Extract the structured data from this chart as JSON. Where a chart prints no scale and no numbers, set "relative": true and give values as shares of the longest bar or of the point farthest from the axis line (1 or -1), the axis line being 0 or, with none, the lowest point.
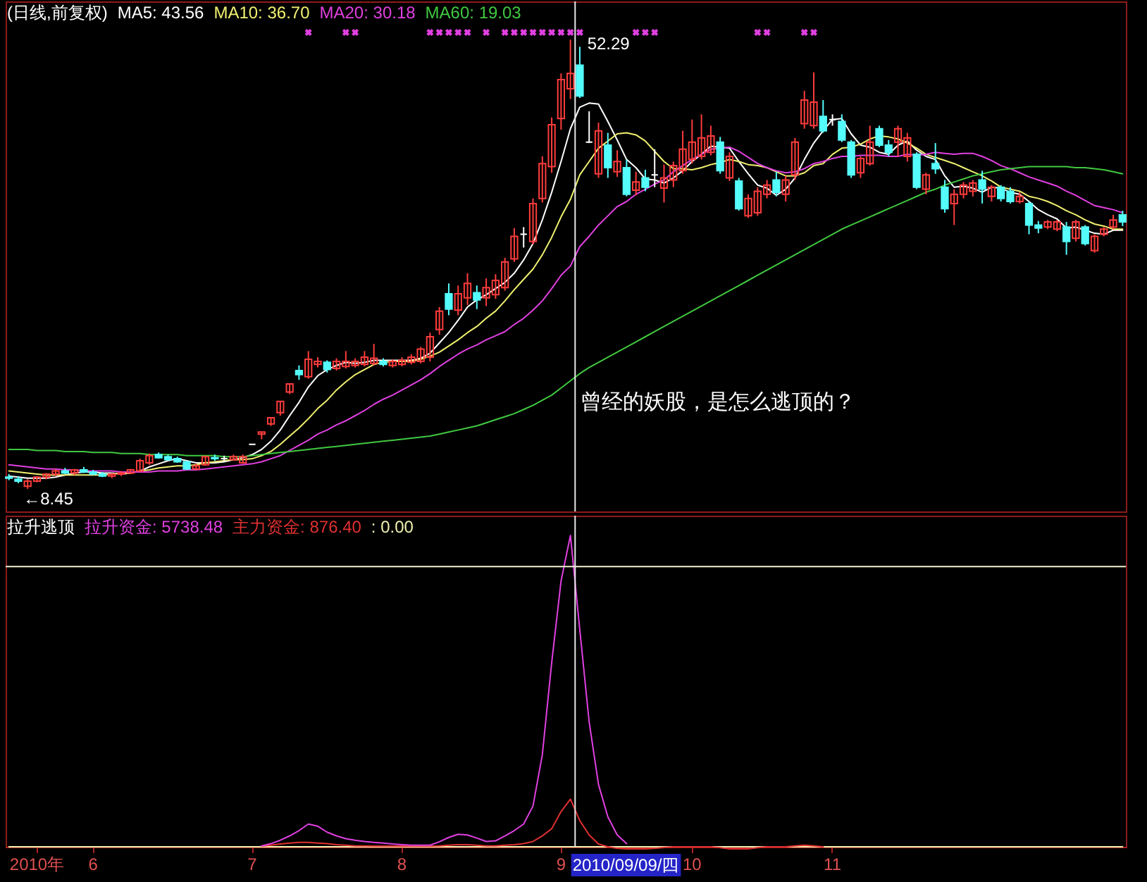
{
  "chart_data": [
    {
      "type": "candlestick",
      "title": "(日线,前复权)",
      "legend": "top left",
      "tick_labels": false,
      "categories": [
        null,
        null,
        null,
        null,
        null,
        null,
        null,
        null,
        null,
        null,
        null,
        null,
        null,
        null,
        null,
        null,
        null,
        null,
        null,
        null,
        null,
        null,
        null,
        null,
        null,
        null,
        null,
        null,
        null,
        null,
        null,
        null,
        null,
        null,
        null,
        null,
        null,
        null,
        null,
        null,
        null,
        null,
        null,
        null,
        null,
        null,
        null,
        null,
        null,
        null,
        null,
        null,
        null,
        null,
        null,
        null,
        null,
        null,
        null,
        null,
        null,
        null,
        null,
        null,
        null,
        null,
        null,
        null,
        null,
        null,
        null,
        null,
        null,
        null,
        null,
        null,
        null,
        null,
        null,
        null,
        null,
        null,
        null,
        null,
        null,
        null,
        null,
        null,
        null,
        null,
        null,
        null,
        null,
        null,
        null,
        null,
        null,
        null,
        null,
        null,
        null,
        null,
        null,
        null,
        null,
        null,
        null,
        null,
        null,
        null,
        null,
        null,
        null,
        null,
        null,
        null,
        null,
        null,
        null,
        null
      ],
      "ohlc": [
        [
          9.6,
          9.9,
          9.3,
          9.5
        ],
        [
          9.4,
          9.7,
          9.0,
          9.2
        ],
        [
          8.7,
          9.4,
          8.45,
          9.2
        ],
        [
          9.2,
          9.7,
          9.1,
          9.6
        ],
        [
          9.6,
          10.0,
          9.4,
          9.9
        ],
        [
          9.9,
          10.4,
          9.7,
          10.2
        ],
        [
          10.2,
          10.5,
          9.9,
          10.0
        ],
        [
          10.0,
          10.4,
          9.8,
          10.3
        ],
        [
          10.3,
          10.6,
          10.0,
          10.1
        ],
        [
          10.1,
          10.3,
          9.8,
          9.9
        ],
        [
          9.9,
          10.1,
          9.6,
          9.7
        ],
        [
          9.7,
          10.0,
          9.5,
          9.9
        ],
        [
          9.9,
          10.2,
          9.7,
          10.0
        ],
        [
          10.0,
          10.4,
          9.9,
          10.3
        ],
        [
          10.2,
          11.4,
          10.1,
          11.2
        ],
        [
          11.0,
          11.9,
          10.8,
          11.7
        ],
        [
          11.8,
          12.0,
          11.4,
          11.5
        ],
        [
          11.6,
          11.8,
          11.2,
          11.3
        ],
        [
          11.4,
          11.6,
          11.0,
          11.1
        ],
        [
          11.1,
          11.2,
          10.3,
          10.4
        ],
        [
          10.4,
          10.9,
          10.3,
          10.7
        ],
        [
          10.8,
          11.7,
          10.7,
          11.6
        ],
        [
          11.5,
          11.8,
          11.2,
          11.4
        ],
        [
          11.4,
          11.7,
          11.1,
          11.4
        ],
        [
          11.3,
          11.8,
          11.2,
          11.6
        ],
        [
          11.0,
          11.8,
          10.9,
          11.6
        ],
        [
          12.8,
          12.8,
          12.8,
          12.8
        ],
        [
          13.8,
          14.0,
          13.3,
          14.0
        ],
        [
          14.8,
          15.4,
          14.6,
          15.4
        ],
        [
          15.9,
          17.0,
          15.6,
          17.0
        ],
        [
          17.9,
          18.7,
          17.7,
          18.7
        ],
        [
          20.0,
          20.5,
          19.1,
          19.6
        ],
        [
          19.4,
          21.9,
          19.2,
          21.1
        ],
        [
          20.6,
          21.3,
          20.3,
          20.9
        ],
        [
          20.8,
          21.0,
          19.8,
          20.1
        ],
        [
          20.2,
          21.2,
          20.0,
          20.9
        ],
        [
          20.4,
          21.9,
          20.2,
          20.9
        ],
        [
          20.5,
          21.2,
          20.3,
          20.9
        ],
        [
          20.6,
          21.9,
          20.4,
          21.3
        ],
        [
          20.7,
          22.6,
          20.5,
          21.2
        ],
        [
          20.9,
          21.2,
          20.4,
          20.6
        ],
        [
          20.5,
          21.1,
          20.3,
          20.9
        ],
        [
          20.6,
          21.3,
          20.4,
          21.0
        ],
        [
          20.8,
          21.6,
          20.6,
          21.3
        ],
        [
          20.9,
          22.3,
          20.7,
          22.1
        ],
        [
          21.3,
          23.7,
          20.9,
          23.3
        ],
        [
          24.0,
          26.2,
          23.5,
          25.8
        ],
        [
          27.5,
          28.5,
          25.4,
          26.0
        ],
        [
          25.9,
          28.3,
          25.4,
          27.5
        ],
        [
          27.1,
          29.5,
          26.4,
          28.5
        ],
        [
          27.6,
          28.3,
          26.0,
          26.9
        ],
        [
          27.1,
          29.0,
          26.3,
          28.1
        ],
        [
          27.4,
          29.4,
          27.0,
          28.8
        ],
        [
          28.1,
          31.0,
          27.8,
          30.6
        ],
        [
          30.9,
          33.9,
          30.6,
          33.1
        ],
        [
          33.3,
          34.0,
          32.0,
          33.3
        ],
        [
          32.6,
          36.8,
          32.3,
          36.3
        ],
        [
          36.8,
          40.9,
          36.4,
          40.2
        ],
        [
          39.9,
          44.7,
          39.3,
          44.0
        ],
        [
          44.6,
          49.0,
          43.5,
          48.4
        ],
        [
          47.5,
          52.29,
          46.5,
          49.0
        ],
        [
          49.8,
          51.6,
          46.6,
          46.8
        ],
        [
          42.3,
          45.3,
          42.2,
          42.3
        ],
        [
          39.2,
          44.2,
          38.8,
          43.4
        ],
        [
          42.0,
          43.2,
          38.8,
          39.8
        ],
        [
          39.4,
          41.5,
          38.9,
          40.4
        ],
        [
          39.8,
          40.6,
          37.0,
          37.2
        ],
        [
          37.6,
          39.4,
          37.1,
          38.4
        ],
        [
          38.8,
          39.6,
          37.5,
          37.9
        ],
        [
          39.1,
          41.6,
          37.9,
          39.1
        ],
        [
          37.8,
          40.1,
          36.4,
          38.8
        ],
        [
          38.6,
          40.4,
          37.9,
          40.0
        ],
        [
          39.5,
          43.4,
          39.2,
          41.6
        ],
        [
          40.6,
          44.5,
          40.2,
          42.3
        ],
        [
          40.9,
          45.0,
          40.6,
          42.7
        ],
        [
          41.3,
          43.9,
          41.0,
          42.9
        ],
        [
          42.3,
          42.8,
          39.2,
          39.5
        ],
        [
          38.8,
          41.3,
          38.5,
          40.9
        ],
        [
          38.5,
          38.8,
          35.6,
          35.8
        ],
        [
          35.1,
          37.2,
          34.9,
          36.8
        ],
        [
          35.4,
          37.9,
          35.1,
          37.5
        ],
        [
          37.2,
          38.6,
          36.8,
          38.1
        ],
        [
          38.6,
          39.4,
          37.0,
          37.4
        ],
        [
          37.2,
          39.0,
          36.5,
          38.6
        ],
        [
          39.1,
          42.7,
          38.6,
          42.3
        ],
        [
          44.1,
          47.3,
          43.6,
          46.4
        ],
        [
          43.9,
          49.1,
          43.6,
          46.2
        ],
        [
          44.8,
          46.4,
          43.2,
          43.4
        ],
        [
          44.5,
          45.0,
          43.9,
          44.5
        ],
        [
          44.3,
          45.0,
          42.3,
          42.5
        ],
        [
          42.3,
          42.5,
          38.8,
          39.1
        ],
        [
          39.3,
          40.9,
          38.8,
          40.7
        ],
        [
          40.2,
          43.9,
          40.0,
          42.3
        ],
        [
          43.6,
          43.9,
          41.8,
          42.0
        ],
        [
          42.0,
          42.5,
          40.9,
          41.3
        ],
        [
          42.3,
          43.9,
          40.9,
          43.6
        ],
        [
          40.9,
          43.2,
          40.4,
          42.7
        ],
        [
          41.1,
          41.3,
          37.7,
          37.9
        ],
        [
          37.7,
          39.3,
          37.2,
          39.1
        ],
        [
          40.2,
          42.2,
          39.2,
          39.7
        ],
        [
          37.9,
          38.6,
          35.4,
          35.8
        ],
        [
          36.3,
          37.7,
          34.2,
          37.2
        ],
        [
          37.2,
          38.4,
          36.8,
          38.1
        ],
        [
          37.5,
          38.6,
          37.0,
          38.3
        ],
        [
          38.6,
          39.5,
          36.3,
          37.7
        ],
        [
          37.0,
          38.1,
          36.5,
          37.9
        ],
        [
          37.9,
          38.1,
          36.5,
          36.8
        ],
        [
          37.5,
          37.9,
          36.3,
          36.5
        ],
        [
          36.5,
          37.4,
          36.3,
          37.0
        ],
        [
          36.3,
          36.5,
          33.3,
          34.2
        ],
        [
          34.2,
          34.6,
          33.4,
          33.9
        ],
        [
          34.0,
          34.7,
          33.8,
          34.5
        ],
        [
          33.8,
          34.7,
          33.6,
          34.5
        ],
        [
          34.0,
          34.5,
          31.3,
          32.6
        ],
        [
          32.9,
          34.7,
          32.6,
          34.5
        ],
        [
          34.0,
          34.2,
          32.2,
          32.4
        ],
        [
          31.7,
          33.3,
          31.5,
          33.1
        ],
        [
          33.3,
          34.0,
          33.1,
          33.8
        ],
        [
          34.0,
          35.2,
          33.8,
          34.7
        ],
        [
          35.2,
          35.6,
          34.1,
          34.5
        ]
      ],
      "colors": [
        "#54fcfc",
        "#54fcfc",
        "#ff3c3c",
        "#ff3c3c",
        "#ff3c3c",
        "#ff3c3c",
        "#54fcfc",
        "#ff3c3c",
        "#54fcfc",
        "#54fcfc",
        "#54fcfc",
        "#ff3c3c",
        "#ff3c3c",
        "#ff3c3c",
        "#ff3c3c",
        "#ff3c3c",
        "#54fcfc",
        "#54fcfc",
        "#54fcfc",
        "#54fcfc",
        "#ff3c3c",
        "#ff3c3c",
        "#54fcfc",
        "#ffffff",
        "#ff3c3c",
        "#ff3c3c",
        "#ffffff",
        "#ff3c3c",
        "#ff3c3c",
        "#ff3c3c",
        "#ff3c3c",
        "#54fcfc",
        "#ff3c3c",
        "#ff3c3c",
        "#54fcfc",
        "#ff3c3c",
        "#ff3c3c",
        "#ff3c3c",
        "#ff3c3c",
        "#ff3c3c",
        "#54fcfc",
        "#ff3c3c",
        "#ff3c3c",
        "#ff3c3c",
        "#ff3c3c",
        "#ff3c3c",
        "#ff3c3c",
        "#54fcfc",
        "#ff3c3c",
        "#ff3c3c",
        "#54fcfc",
        "#ff3c3c",
        "#ff3c3c",
        "#ff3c3c",
        "#ff3c3c",
        "#ffffff",
        "#ff3c3c",
        "#ff3c3c",
        "#ff3c3c",
        "#ff3c3c",
        "#ff3c3c",
        "#54fcfc",
        "#ffffff",
        "#ff3c3c",
        "#54fcfc",
        "#ff3c3c",
        "#54fcfc",
        "#ff3c3c",
        "#54fcfc",
        "#ffffff",
        "#ff3c3c",
        "#ff3c3c",
        "#ff3c3c",
        "#ff3c3c",
        "#ff3c3c",
        "#ff3c3c",
        "#54fcfc",
        "#ff3c3c",
        "#54fcfc",
        "#ff3c3c",
        "#ff3c3c",
        "#ff3c3c",
        "#54fcfc",
        "#ff3c3c",
        "#ff3c3c",
        "#ff3c3c",
        "#ff3c3c",
        "#54fcfc",
        "#ffffff",
        "#54fcfc",
        "#54fcfc",
        "#ff3c3c",
        "#ff3c3c",
        "#54fcfc",
        "#54fcfc",
        "#ff3c3c",
        "#ff3c3c",
        "#54fcfc",
        "#ff3c3c",
        "#54fcfc",
        "#54fcfc",
        "#ff3c3c",
        "#ff3c3c",
        "#ff3c3c",
        "#54fcfc",
        "#ff3c3c",
        "#54fcfc",
        "#54fcfc",
        "#ff3c3c",
        "#54fcfc",
        "#54fcfc",
        "#ff3c3c",
        "#ff3c3c",
        "#54fcfc",
        "#ff3c3c",
        "#54fcfc",
        "#ff3c3c",
        "#ff3c3c",
        "#ff3c3c",
        "#54fcfc"
      ],
      "series": [
        {
          "name": "MA5: 43.56",
          "type": "line",
          "color": "#ffffff",
          "values": [
            9.7,
            9.6,
            9.5,
            9.5,
            9.5,
            9.6,
            9.8,
            10.0,
            10.1,
            10.1,
            10.0,
            10.0,
            9.9,
            10.0,
            10.2,
            10.6,
            10.9,
            11.2,
            11.4,
            11.2,
            11.0,
            11.0,
            11.0,
            11.1,
            11.3,
            11.5,
            11.8,
            12.3,
            13.1,
            14.2,
            15.6,
            16.9,
            18.4,
            19.5,
            20.1,
            20.5,
            20.8,
            20.7,
            20.8,
            21.0,
            21.0,
            21.0,
            21.0,
            21.0,
            21.2,
            21.7,
            22.7,
            23.7,
            24.9,
            26.2,
            26.9,
            27.4,
            28.0,
            28.6,
            29.5,
            30.8,
            32.4,
            34.7,
            37.4,
            40.4,
            43.6,
            45.7,
            46.1,
            46.0,
            44.3,
            42.5,
            40.6,
            39.8,
            38.7,
            38.6,
            38.3,
            38.8,
            39.5,
            40.4,
            41.1,
            41.9,
            41.8,
            41.7,
            40.4,
            39.2,
            38.1,
            37.8,
            37.1,
            37.7,
            38.8,
            40.6,
            42.2,
            43.4,
            44.5,
            44.6,
            43.1,
            42.0,
            41.8,
            41.3,
            41.1,
            42.0,
            42.4,
            41.5,
            40.9,
            40.6,
            39.0,
            37.9,
            38.0,
            37.8,
            37.4,
            37.9,
            37.8,
            37.4,
            37.2,
            36.5,
            35.7,
            35.2,
            34.8,
            33.9,
            34.0,
            33.7,
            33.4,
            33.3,
            33.7,
            33.7
          ]
        },
        {
          "name": "MA10: 36.70",
          "type": "line",
          "color": "#f0f070",
          "values": [
            10.2,
            10.1,
            10.0,
            9.9,
            9.8,
            9.8,
            9.8,
            9.8,
            9.8,
            9.8,
            9.8,
            9.9,
            10.0,
            10.0,
            10.2,
            10.3,
            10.5,
            10.6,
            10.7,
            10.7,
            10.8,
            11.0,
            11.1,
            11.2,
            11.3,
            11.3,
            11.4,
            11.7,
            12.1,
            12.8,
            13.6,
            14.4,
            15.3,
            16.3,
            17.1,
            18.1,
            18.9,
            19.6,
            20.1,
            20.6,
            20.8,
            20.9,
            20.9,
            20.9,
            21.1,
            21.4,
            21.8,
            22.4,
            23.0,
            23.7,
            24.3,
            25.1,
            25.8,
            26.8,
            27.9,
            28.9,
            29.9,
            31.3,
            33.0,
            35.0,
            36.7,
            39.1,
            40.4,
            41.7,
            42.4,
            43.1,
            43.2,
            43.0,
            42.4,
            41.4,
            40.4,
            39.7,
            39.7,
            39.6,
            39.8,
            40.1,
            40.3,
            40.6,
            40.4,
            40.1,
            40.0,
            39.8,
            39.4,
            39.0,
            39.0,
            39.3,
            40.0,
            40.2,
            41.1,
            41.7,
            41.8,
            42.1,
            42.6,
            42.9,
            42.8,
            42.6,
            42.2,
            41.7,
            41.1,
            40.8,
            40.5,
            40.2,
            39.8,
            39.4,
            39.0,
            38.5,
            37.9,
            37.7,
            37.5,
            37.0,
            36.8,
            36.5,
            36.1,
            35.6,
            35.2,
            34.7,
            34.3,
            34.1,
            33.8,
            33.8
          ]
        },
        {
          "name": "MA20: 30.18",
          "type": "line",
          "color": "#e040e0",
          "values": [
            10.8,
            10.7,
            10.6,
            10.5,
            10.4,
            10.4,
            10.3,
            10.3,
            10.2,
            10.2,
            10.2,
            10.2,
            10.1,
            10.1,
            10.1,
            10.1,
            10.2,
            10.2,
            10.2,
            10.3,
            10.3,
            10.4,
            10.5,
            10.6,
            10.7,
            10.8,
            10.9,
            11.1,
            11.4,
            11.7,
            12.2,
            12.7,
            13.2,
            13.8,
            14.2,
            14.7,
            15.1,
            15.6,
            16.1,
            16.7,
            17.2,
            17.6,
            18.1,
            18.6,
            19.1,
            19.7,
            20.4,
            21.0,
            21.6,
            22.1,
            22.5,
            23.0,
            23.4,
            23.8,
            24.5,
            25.1,
            25.9,
            26.8,
            28.0,
            29.3,
            30.2,
            32.1,
            33.1,
            34.2,
            35.1,
            36.0,
            36.5,
            37.2,
            37.7,
            38.2,
            38.6,
            39.4,
            40.0,
            40.6,
            41.1,
            41.6,
            41.7,
            41.8,
            41.4,
            40.8,
            40.2,
            39.8,
            39.5,
            39.3,
            39.4,
            39.7,
            40.2,
            40.4,
            40.7,
            40.9,
            40.9,
            41.0,
            41.0,
            41.0,
            40.9,
            40.9,
            41.1,
            41.0,
            41.1,
            41.3,
            41.2,
            41.1,
            41.2,
            41.2,
            40.9,
            40.5,
            40.0,
            39.7,
            39.3,
            38.9,
            38.6,
            38.3,
            38.0,
            37.5,
            37.1,
            36.6,
            36.1,
            35.9,
            35.7,
            35.4
          ]
        },
        {
          "name": "MA60: 19.03",
          "type": "line",
          "color": "#40c840",
          "values": [
            12.3,
            12.3,
            12.3,
            12.2,
            12.2,
            12.2,
            12.1,
            12.1,
            12.1,
            12.0,
            12.0,
            12.0,
            11.9,
            11.9,
            11.9,
            11.8,
            11.8,
            11.8,
            11.8,
            11.7,
            11.7,
            11.7,
            11.7,
            11.6,
            11.6,
            11.6,
            11.7,
            11.8,
            11.9,
            12.0,
            12.1,
            12.2,
            12.3,
            12.4,
            12.5,
            12.6,
            12.7,
            12.8,
            12.9,
            13.0,
            13.1,
            13.2,
            13.3,
            13.4,
            13.5,
            13.6,
            13.8,
            14.0,
            14.2,
            14.4,
            14.6,
            14.9,
            15.2,
            15.5,
            15.8,
            16.2,
            16.6,
            17.1,
            17.6,
            18.3,
            19.0,
            19.7,
            20.3,
            20.8,
            21.3,
            21.8,
            22.3,
            22.8,
            23.3,
            23.8,
            24.3,
            24.8,
            25.3,
            25.8,
            26.3,
            26.8,
            27.3,
            27.8,
            28.3,
            28.8,
            29.3,
            29.8,
            30.3,
            30.8,
            31.3,
            31.8,
            32.3,
            32.8,
            33.3,
            33.8,
            34.2,
            34.6,
            35.0,
            35.4,
            35.8,
            36.2,
            36.6,
            37.0,
            37.4,
            37.7,
            38.1,
            38.4,
            38.7,
            39.0,
            39.2,
            39.4,
            39.6,
            39.7,
            39.8,
            39.9,
            39.9,
            39.9,
            39.9,
            39.9,
            39.8,
            39.8,
            39.7,
            39.6,
            39.4,
            39.2
          ]
        },
        {
          "type": "scatter",
          "marker": "cross",
          "color": "#e040e0",
          "values": [
            null,
            null,
            null,
            null,
            null,
            null,
            null,
            null,
            null,
            null,
            null,
            null,
            null,
            null,
            null,
            null,
            null,
            null,
            null,
            null,
            null,
            null,
            null,
            null,
            null,
            null,
            null,
            null,
            null,
            null,
            null,
            null,
            53,
            null,
            null,
            null,
            53,
            53,
            null,
            null,
            null,
            null,
            null,
            null,
            null,
            53,
            53,
            53,
            53,
            53,
            null,
            53,
            null,
            53,
            53,
            53,
            53,
            53,
            53,
            53,
            53,
            53,
            null,
            null,
            null,
            null,
            null,
            53,
            53,
            53,
            null,
            null,
            null,
            null,
            null,
            null,
            null,
            null,
            null,
            null,
            53,
            53,
            null,
            null,
            null,
            53,
            53,
            null,
            null,
            null,
            null,
            null,
            null,
            null,
            null,
            null,
            null,
            null,
            null,
            null,
            null,
            null,
            null,
            null,
            null,
            null,
            null,
            null,
            null,
            null,
            null,
            null,
            null,
            null,
            null,
            null,
            null,
            null,
            null,
            null
          ]
        }
      ],
      "annotations": [
        "52.29",
        "←8.45",
        "曾经的妖股，是怎么逃顶的？"
      ]
    },
    {
      "type": "line",
      "title": "拉升逃顶",
      "legend": "top left",
      "tick_labels": "x",
      "relative": true,
      "categories": [
        null,
        null,
        null,
        "2010年",
        null,
        null,
        null,
        null,
        null,
        "6",
        null,
        null,
        null,
        null,
        null,
        null,
        null,
        null,
        null,
        null,
        null,
        null,
        null,
        null,
        null,
        null,
        "7",
        null,
        null,
        null,
        null,
        null,
        null,
        null,
        null,
        null,
        null,
        null,
        null,
        null,
        null,
        null,
        "8",
        null,
        null,
        null,
        null,
        null,
        null,
        null,
        null,
        null,
        null,
        null,
        null,
        null,
        null,
        null,
        null,
        "9",
        null,
        null,
        null,
        null,
        null,
        null,
        null,
        null,
        null,
        null,
        null,
        null,
        null,
        "10",
        null,
        null,
        null,
        null,
        null,
        null,
        null,
        null,
        null,
        null,
        null,
        null,
        null,
        null,
        "11",
        null,
        null,
        null,
        null,
        null,
        null,
        null,
        null,
        null,
        null,
        null,
        null,
        null,
        null,
        null,
        null,
        null,
        null,
        null,
        null,
        null,
        null,
        null,
        null,
        null,
        null,
        null,
        null,
        null,
        null,
        null
      ],
      "series": [
        {
          "name": "拉升资金: 5738.48",
          "color": "#e040e0",
          "values": [
            null,
            null,
            null,
            null,
            null,
            null,
            null,
            null,
            null,
            null,
            null,
            null,
            null,
            null,
            null,
            null,
            null,
            null,
            null,
            null,
            null,
            null,
            null,
            null,
            null,
            null,
            null,
            0.003,
            0.01,
            0.021,
            0.035,
            0.052,
            0.073,
            0.066,
            0.047,
            0.035,
            0.026,
            0.021,
            0.017,
            0.014,
            0.012,
            0.009,
            0.007,
            0.005,
            0.005,
            0.005,
            0.016,
            0.03,
            0.04,
            0.038,
            0.028,
            0.017,
            0.019,
            0.035,
            0.052,
            0.073,
            0.131,
            0.296,
            0.592,
            0.854,
            1,
            0.697,
            0.401,
            0.2,
            0.096,
            0.038,
            0.01,
            null,
            null,
            null,
            null,
            null,
            null,
            null,
            null,
            null,
            null,
            null,
            null,
            null,
            null,
            null,
            null,
            null,
            null,
            null,
            null,
            null,
            null,
            null,
            null,
            null,
            null,
            null,
            null,
            null,
            null,
            null,
            null,
            null,
            null,
            null,
            null,
            null,
            null,
            null,
            null,
            null,
            null,
            null,
            null,
            null,
            null,
            null,
            null,
            null,
            null,
            null,
            null,
            null
          ]
        },
        {
          "name": "主力资金: 876.40",
          "color": "#e03030",
          "values": [
            null,
            null,
            null,
            null,
            null,
            null,
            null,
            null,
            null,
            null,
            null,
            null,
            null,
            null,
            null,
            null,
            null,
            null,
            null,
            null,
            null,
            null,
            null,
            null,
            null,
            null,
            null,
            0.002,
            0.005,
            0.009,
            0.012,
            0.014,
            0.014,
            0.012,
            0.01,
            0.007,
            0.005,
            0.003,
            0.003,
            0.002,
            0.002,
            0.002,
            0.002,
            0.002,
            0.002,
            0.002,
            0.003,
            0.005,
            0.007,
            0.007,
            0.005,
            0.003,
            0.003,
            0.005,
            0.007,
            0.01,
            0.017,
            0.035,
            0.058,
            0.113,
            0.153,
            0.084,
            0.038,
            0.009,
            0,
            -0.005,
            -0.007,
            -0.007,
            -0.007,
            -0.005,
            -0.002,
            0,
            0,
            0,
            0,
            0,
            -0.003,
            -0.007,
            -0.007,
            -0.007,
            -0.003,
            0,
            0,
            0,
            0.003,
            0.005,
            0.003,
            0,
            null,
            null,
            null,
            null,
            null,
            null,
            null,
            null,
            null,
            null,
            null,
            null,
            null,
            null,
            null,
            null,
            null,
            null,
            null,
            null,
            null,
            null,
            null,
            null,
            null,
            null,
            null,
            null,
            null,
            null,
            null,
            null
          ]
        },
        {
          "name": ": 0.00",
          "color": "#f0f0b0",
          "values": [
            0,
            0,
            0,
            0,
            0,
            0,
            0,
            0,
            0,
            0,
            0,
            0,
            0,
            0,
            0,
            0,
            0,
            0,
            0,
            0,
            0,
            0,
            0,
            0,
            0,
            0,
            0,
            0,
            0,
            0,
            0,
            0,
            0,
            0,
            0,
            0,
            0,
            0,
            0,
            0,
            0,
            0,
            0,
            0,
            0,
            0,
            0,
            0,
            0,
            0,
            0,
            0,
            0,
            0,
            0,
            0,
            0,
            0,
            0,
            0,
            0,
            0,
            0,
            0,
            0,
            0,
            0,
            0,
            0,
            0,
            0,
            0,
            0,
            0,
            0,
            0,
            0,
            0,
            0,
            0,
            0,
            0,
            0,
            0,
            0,
            0,
            0,
            0,
            0,
            0,
            0,
            0,
            0,
            0,
            0,
            0,
            0,
            0,
            0,
            0,
            0,
            0,
            0,
            0,
            0,
            0,
            0,
            0,
            0,
            0,
            0,
            0,
            0,
            0,
            0,
            0,
            0,
            0,
            0,
            0
          ]
        }
      ],
      "annotations": [
        "2010/09/09/四"
      ],
      "ref_lines": [
        {
          "axis": "y",
          "value": 0.9,
          "color": "#f0f0d0"
        }
      ]
    }
  ]
}
